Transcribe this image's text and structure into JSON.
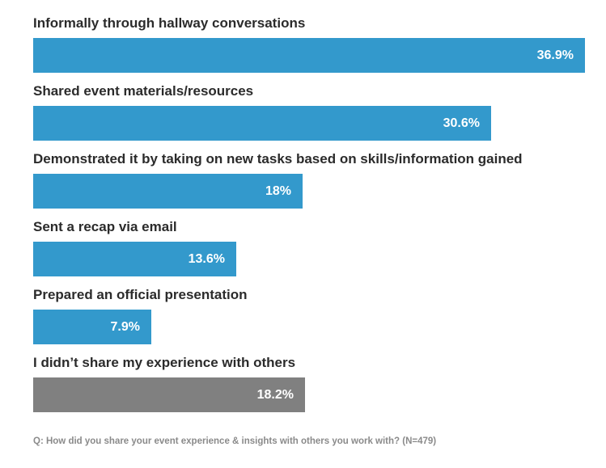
{
  "chart_data": {
    "type": "bar",
    "orientation": "horizontal",
    "categories": [
      "Informally through hallway conversations",
      "Shared event materials/resources",
      "Demonstrated it by taking on new tasks based on skills/information gained",
      "Sent a recap via email",
      "Prepared an official presentation",
      "I didn’t share my experience with others"
    ],
    "values": [
      36.9,
      30.6,
      18,
      13.6,
      7.9,
      18.2
    ],
    "value_labels": [
      "36.9%",
      "30.6%",
      "18%",
      "13.6%",
      "7.9%",
      "18.2%"
    ],
    "bar_colors": [
      "#3399cc",
      "#3399cc",
      "#3399cc",
      "#3399cc",
      "#3399cc",
      "#808080"
    ],
    "xlim": [
      0,
      36.9
    ],
    "grid": false,
    "legend": "none",
    "footnote": "Q: How did you share your event experience & insights with others you work with? (N=479)"
  }
}
